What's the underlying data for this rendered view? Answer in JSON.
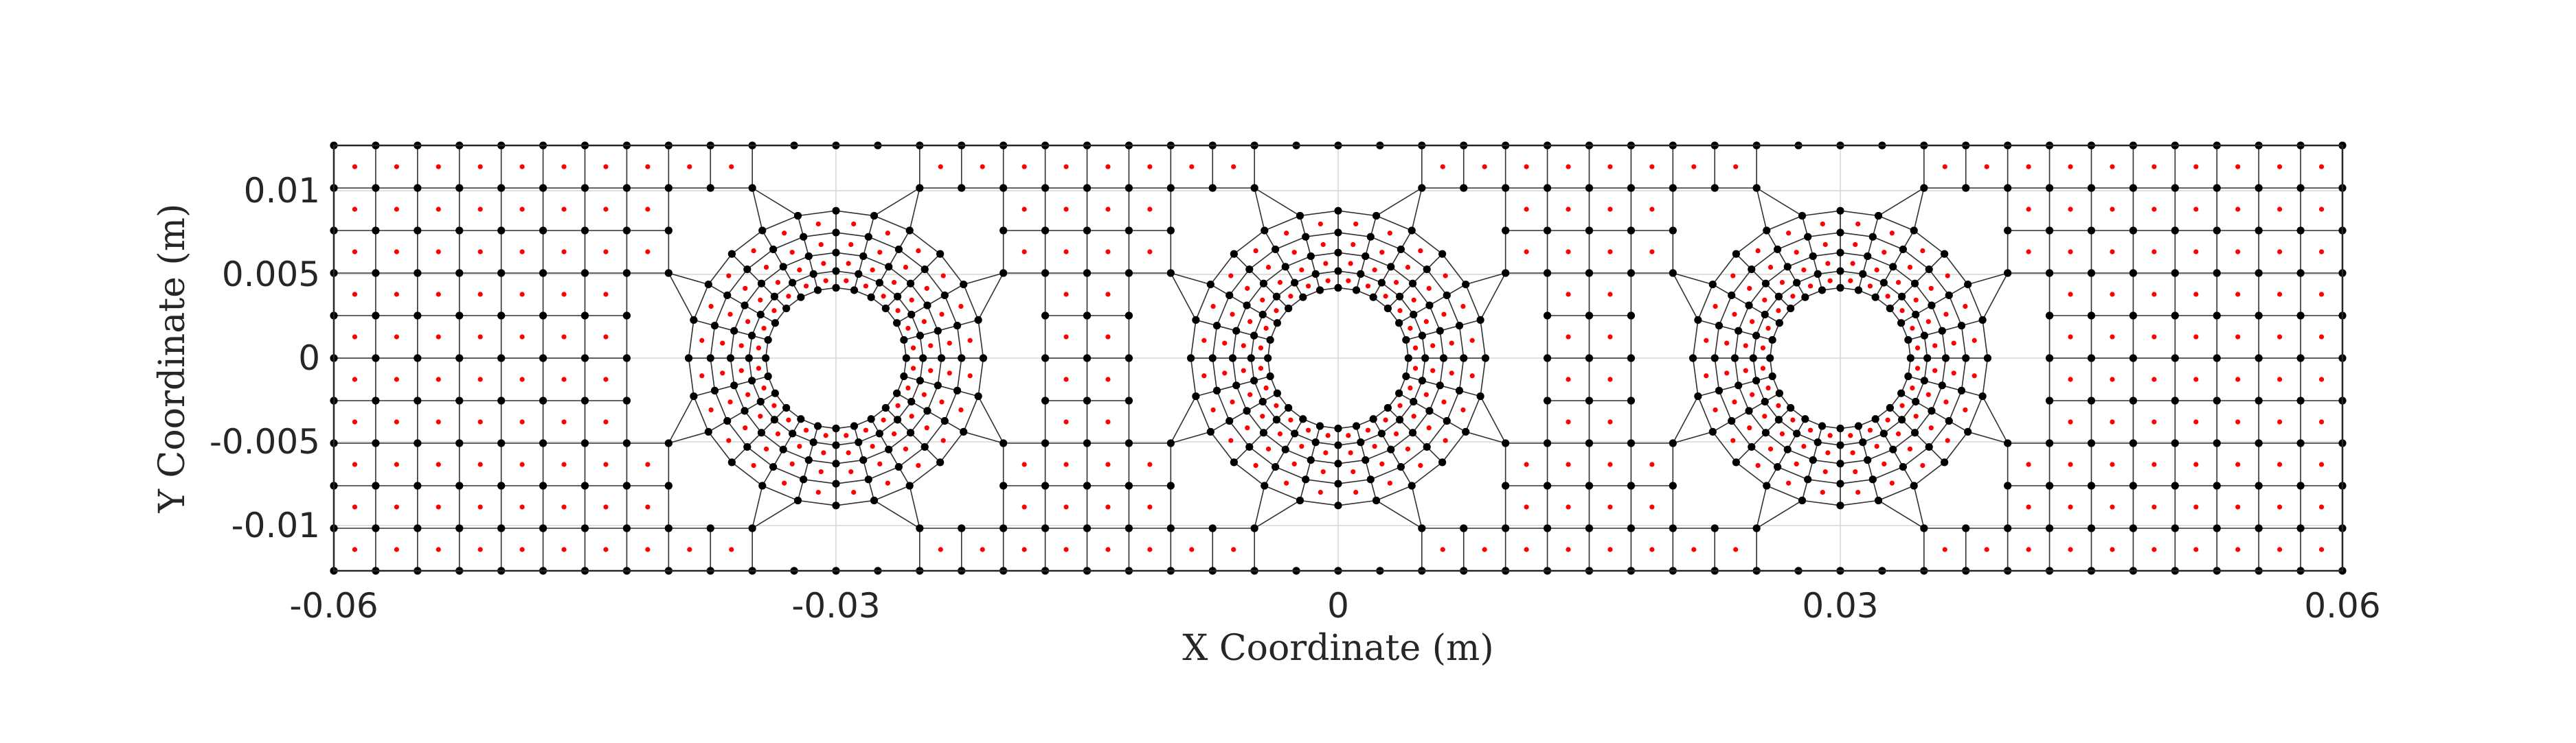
{
  "chart_data": {
    "type": "scatter",
    "title": "",
    "xlabel": "X Coordinate (m)",
    "ylabel": "Y Coordinate (m)",
    "xlim": [
      -0.06,
      0.06
    ],
    "ylim": [
      -0.0127,
      0.0127
    ],
    "xticks": [
      -0.06,
      -0.03,
      0,
      0.03,
      0.06
    ],
    "xtick_labels": [
      "-0.06",
      "-0.03",
      "0",
      "0.03",
      "0.06"
    ],
    "yticks": [
      -0.01,
      -0.005,
      0,
      0.005,
      0.01
    ],
    "ytick_labels": [
      "-0.01",
      "-0.005",
      "0",
      "0.005",
      "0.01"
    ],
    "grid": true,
    "legend": "none",
    "holes": [
      {
        "cx": -0.03,
        "cy": 0,
        "r": 0.0042
      },
      {
        "cx": 0,
        "cy": 0,
        "r": 0.0042
      },
      {
        "cx": 0.03,
        "cy": 0,
        "r": 0.0042
      }
    ],
    "series": [
      {
        "marker": "black dot",
        "color": "#000000",
        "values": "mesh nodes on regular grid (dx = 0.0025 m, dy = 0.00254 m) away from holes; concentric rings (24 nodes per ring) at radii 0.0042, 0.0052, 0.0063, 0.0075, 0.0088 m around each hole"
      },
      {
        "marker": "red dot",
        "color": "#ff0000",
        "values": "element centroids (one per quadrilateral element)"
      }
    ]
  }
}
